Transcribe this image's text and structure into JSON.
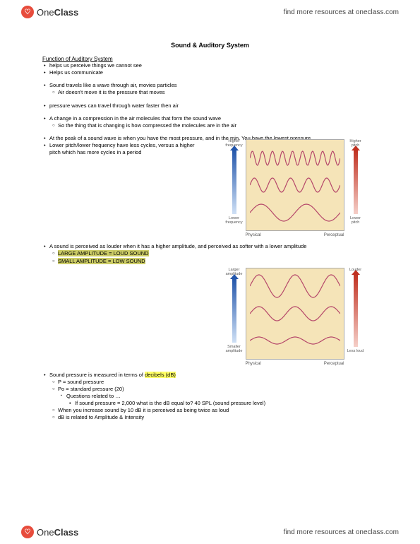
{
  "brand": {
    "logo_one": "One",
    "logo_class": "Class",
    "logo_badge": "♡"
  },
  "header": {
    "resources": "find more resources at oneclass.com"
  },
  "footer": {
    "resources": "find more resources at oneclass.com"
  },
  "doc": {
    "title": "Sound & Auditory System",
    "section1_head": "Function of Auditory System",
    "b1": "helps us perceive things we cannot see",
    "b2": "Helps us communicate",
    "b3": "Sound travels like a wave through air, movies particles",
    "b3a": "Air doesn't move it is the pressure that moves",
    "b4": "pressure waves can travel through water faster then air",
    "b5": "A change in a compression in the air molecules that form the sound wave",
    "b5a": "So the thing that is changing is how compressed the molecules are in the air",
    "b6": "At the peak of a sound wave is when you have the most pressure, and in the min. You have the lowest pressure",
    "b7": "Lower pitch/lower frequency have less cycles, versus a higher pitch which has more cycles in a period",
    "b8": "A sound is perceived as louder when it has a higher amplitude, and perceived as softer with a lower amplitude",
    "b8a": "LARGE AMPLITUDE = LOUD SOUND",
    "b8b": "SMALL AMPLITUDE = LOW SOUND",
    "b9_pre": "Sound pressure is measured in terms of ",
    "b9_hl": "decibels (dB)",
    "b9a": "P = sound pressure",
    "b9b": "Po = standard pressure (20)",
    "b9b1": "Questions related to …",
    "b9b1a": "If sound pressure = 2,000 what is the dB equal to? 40 SPL (sound pressure level)",
    "b9c": "When you increase sound by 10 dB it is perceived as being twice as loud",
    "b9d": "dB is related to Amplitude & Intensity"
  },
  "fig1": {
    "left_top": "Higher frequency",
    "left_bottom": "Lower frequency",
    "right_top": "Higher pitch",
    "right_bottom": "Lower pitch",
    "axis_left": "Physical",
    "axis_right": "Perceptual",
    "wave_color": "#b5476a",
    "box_bg": "#f5e4b8",
    "waves": [
      {
        "cycles": 9,
        "amp": 10
      },
      {
        "cycles": 5,
        "amp": 10
      },
      {
        "cycles": 2,
        "amp": 12
      }
    ]
  },
  "fig2": {
    "left_top": "Larger amplitude",
    "left_bottom": "Smaller amplitude",
    "right_top": "Louder",
    "right_bottom": "Less loud",
    "axis_left": "Physical",
    "axis_right": "Perceptual",
    "wave_color": "#b5476a",
    "box_bg": "#f5e4b8",
    "waves": [
      {
        "cycles": 2.5,
        "amp": 16
      },
      {
        "cycles": 2.5,
        "amp": 10
      },
      {
        "cycles": 2.5,
        "amp": 5
      }
    ]
  },
  "colors": {
    "highlight_yellow": "#ffff66",
    "highlight_olive": "#cccc66",
    "arrow_blue": "#2255aa",
    "arrow_red": "#c03020"
  }
}
